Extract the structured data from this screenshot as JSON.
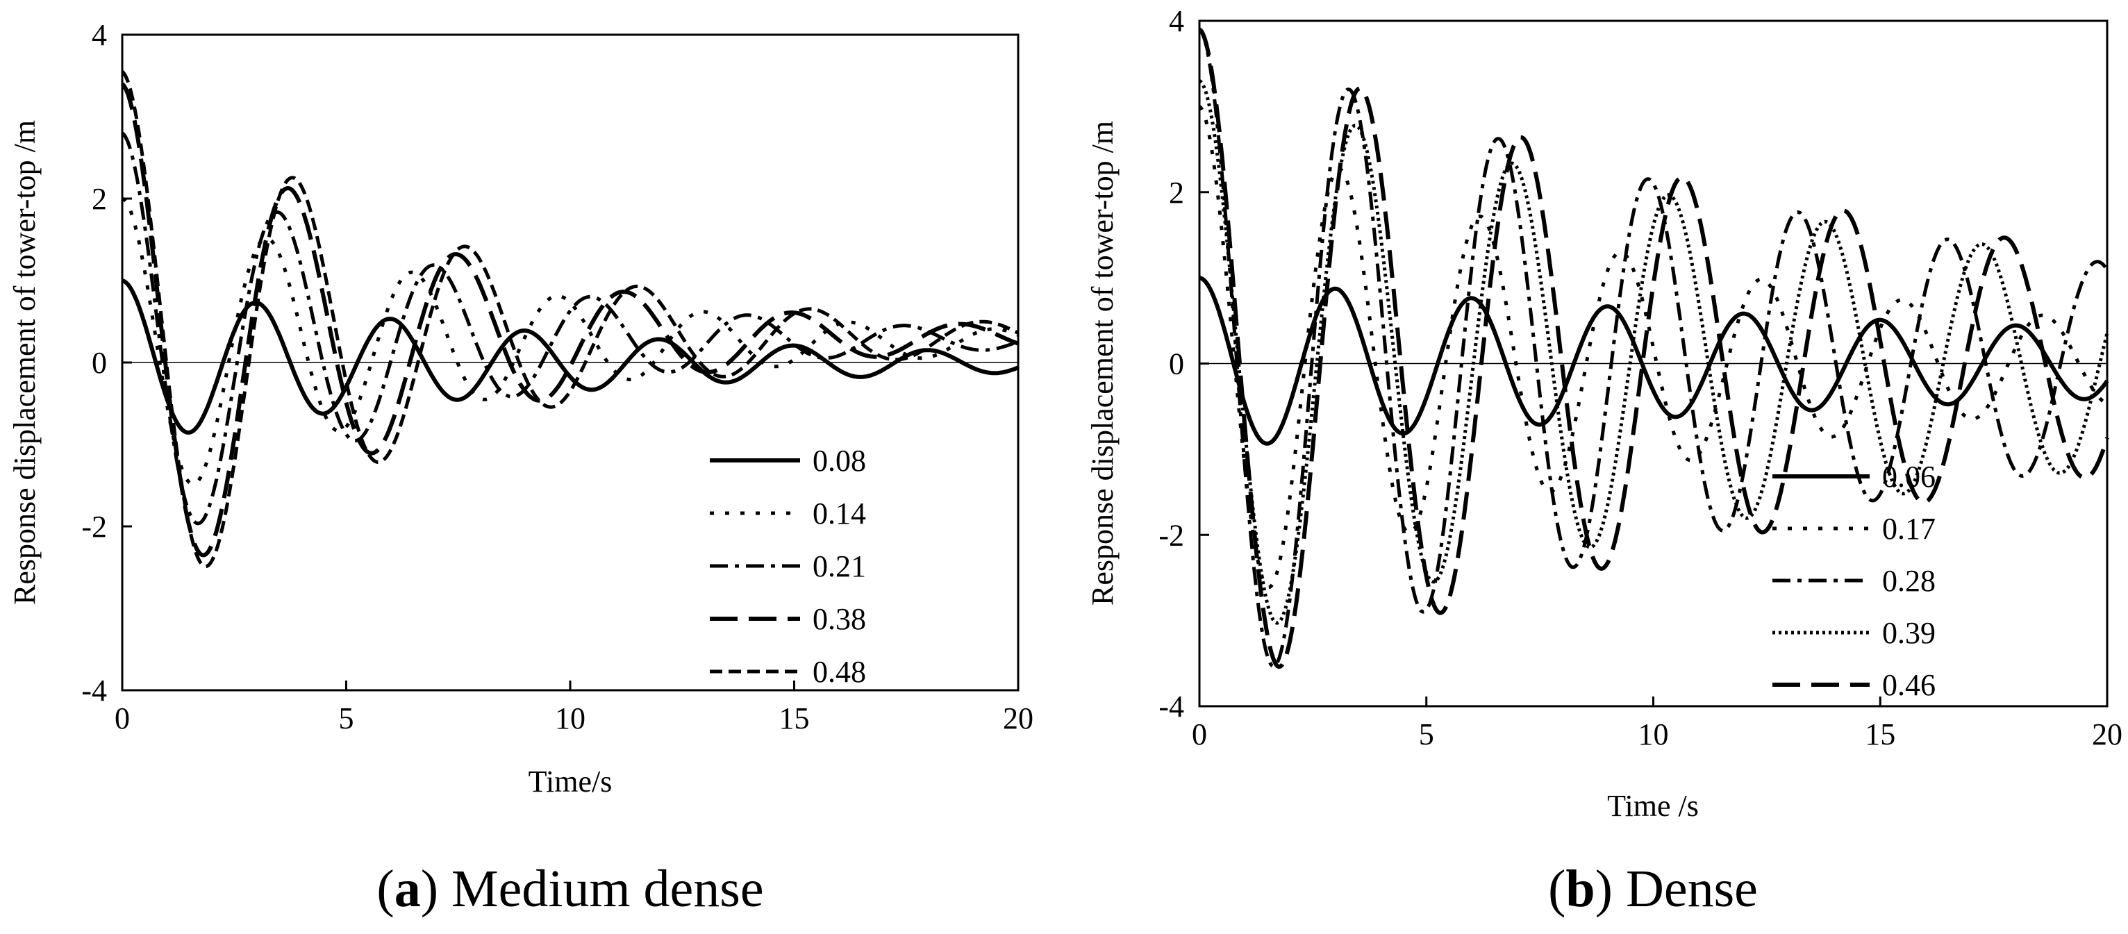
{
  "chart_data": [
    {
      "type": "line",
      "caption_letter": "a",
      "caption_text": " Medium dense",
      "xlabel": "Time/s",
      "ylabel": "Response displacement of tower-top /m",
      "xlim": [
        0,
        20
      ],
      "ylim": [
        -4,
        4
      ],
      "xticks": [
        0,
        5,
        10,
        15,
        20
      ],
      "yticks": [
        -4,
        -2,
        0,
        2,
        4
      ],
      "legend_position": "bottom-right",
      "series": [
        {
          "name": "0.08",
          "style": "solid",
          "A0": 1.0,
          "T": 3.0,
          "c": 0.105,
          "offset": 0.0
        },
        {
          "name": "0.14",
          "style": "dotted",
          "A0": 2.0,
          "T": 3.25,
          "c": 0.13,
          "offset": 0.25
        },
        {
          "name": "0.21",
          "style": "dashdot",
          "A0": 2.8,
          "T": 3.5,
          "c": 0.16,
          "offset": 0.28
        },
        {
          "name": "0.38",
          "style": "longdash",
          "A0": 3.4,
          "T": 3.75,
          "c": 0.16,
          "offset": 0.3
        },
        {
          "name": "0.48",
          "style": "shortdash",
          "A0": 3.55,
          "T": 3.85,
          "c": 0.15,
          "offset": 0.3
        }
      ]
    },
    {
      "type": "line",
      "caption_letter": "b",
      "caption_text": " Dense",
      "xlabel": "Time /s",
      "ylabel": "Response displacement of tower-top /m",
      "xlim": [
        0,
        20
      ],
      "ylim": [
        -4,
        4
      ],
      "xticks": [
        0,
        5,
        10,
        15,
        20
      ],
      "yticks": [
        -4,
        -2,
        0,
        2,
        4
      ],
      "legend_position": "bottom-right",
      "series": [
        {
          "name": "0.06",
          "style": "solid",
          "A0": 1.0,
          "T": 3.0,
          "c": 0.045,
          "offset": 0.0
        },
        {
          "name": "0.17",
          "style": "dotted",
          "A0": 3.0,
          "T": 3.1,
          "c": 0.09,
          "offset": 0.0
        },
        {
          "name": "0.28",
          "style": "dashdot",
          "A0": 3.9,
          "T": 3.3,
          "c": 0.06,
          "offset": 0.0
        },
        {
          "name": "0.39",
          "style": "densedot",
          "A0": 3.3,
          "T": 3.45,
          "c": 0.05,
          "offset": 0.0
        },
        {
          "name": "0.46",
          "style": "longdash",
          "A0": 3.9,
          "T": 3.55,
          "c": 0.055,
          "offset": 0.0
        }
      ]
    }
  ]
}
